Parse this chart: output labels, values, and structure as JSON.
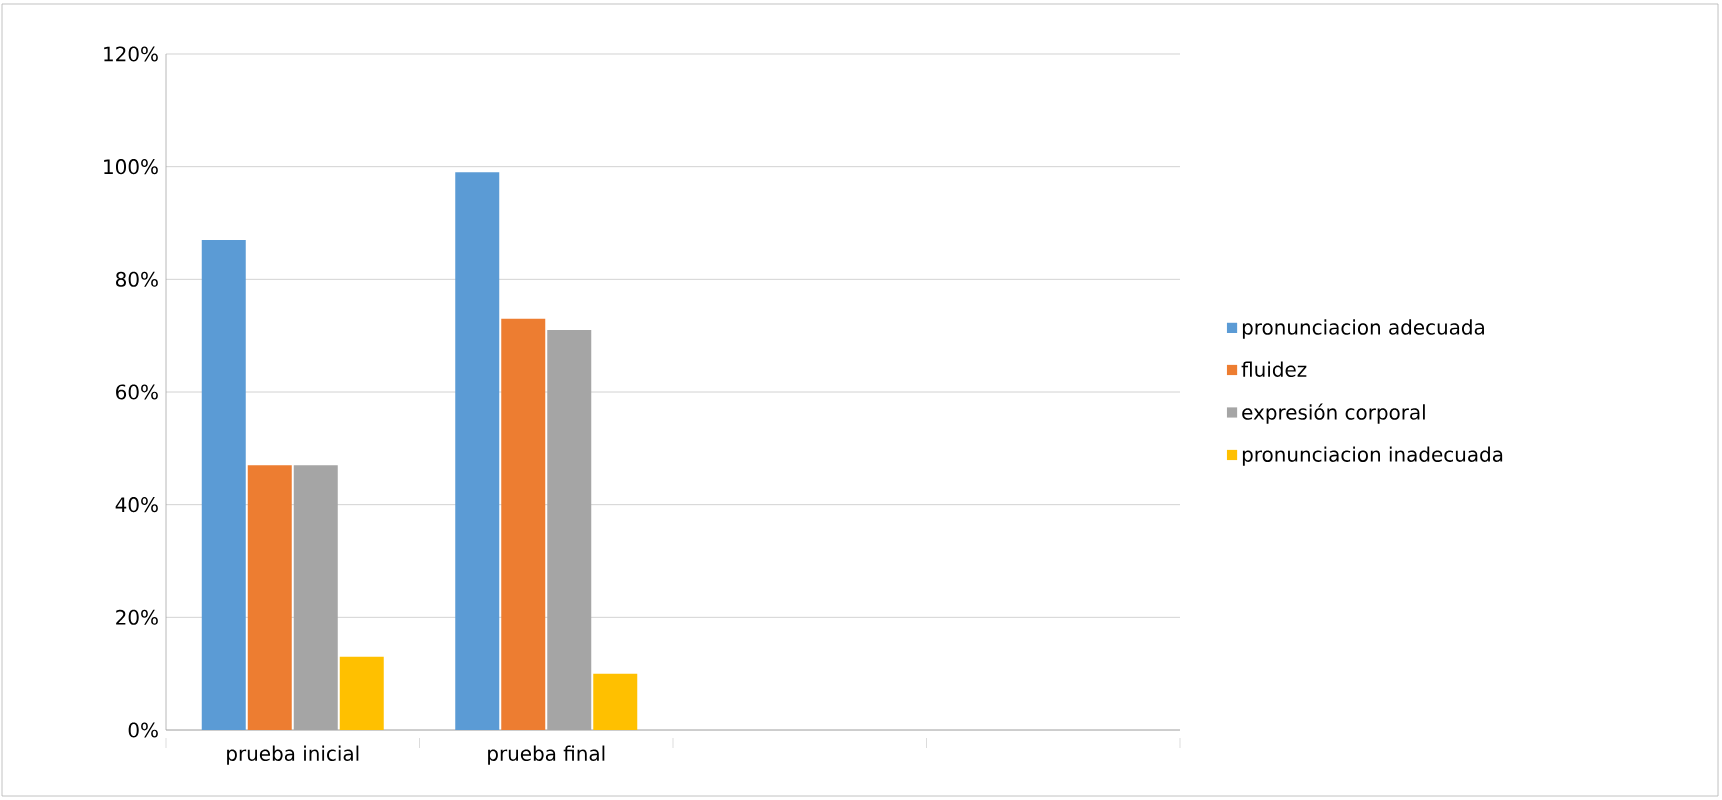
{
  "chart_data": {
    "type": "bar",
    "categories": [
      "prueba inicial",
      "prueba final",
      null,
      null
    ],
    "series": [
      {
        "name": "pronunciacion adecuada",
        "color": "#5b9bd5",
        "values": [
          87,
          99,
          null,
          null
        ]
      },
      {
        "name": "fluidez",
        "color": "#ed7d31",
        "values": [
          47,
          73,
          null,
          null
        ]
      },
      {
        "name": "expresión corporal",
        "color": "#a5a5a5",
        "values": [
          47,
          71,
          null,
          null
        ]
      },
      {
        "name": "pronunciacion inadecuada",
        "color": "#ffc000",
        "values": [
          13,
          10,
          null,
          null
        ]
      }
    ],
    "ylim": [
      0,
      120
    ],
    "yticks": [
      {
        "value": 0,
        "label": "0%"
      },
      {
        "value": 20,
        "label": "20%"
      },
      {
        "value": 40,
        "label": "40%"
      },
      {
        "value": 60,
        "label": "60%"
      },
      {
        "value": 80,
        "label": "80%"
      },
      {
        "value": 100,
        "label": "100%"
      },
      {
        "value": 120,
        "label": "120%"
      }
    ],
    "grid": "y",
    "legend": "right"
  }
}
